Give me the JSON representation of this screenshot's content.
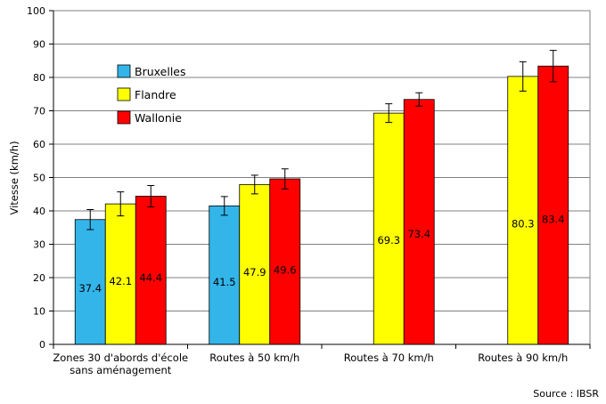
{
  "chart_data": {
    "type": "bar",
    "categories": [
      [
        "Zones 30 d'abords d'école",
        "sans aménagement"
      ],
      [
        "Routes à 50 km/h"
      ],
      [
        "Routes à 70 km/h"
      ],
      [
        "Routes à 90 km/h"
      ]
    ],
    "series": [
      {
        "name": "Bruxelles",
        "color": "#33b5ea",
        "values": [
          37.4,
          41.5,
          null,
          null
        ],
        "labels": [
          "37.4",
          "41.5",
          null,
          null
        ],
        "errors": [
          3.0,
          2.8,
          null,
          null
        ]
      },
      {
        "name": "Flandre",
        "color": "#ffff00",
        "values": [
          42.1,
          47.9,
          69.3,
          80.3
        ],
        "labels": [
          "42.1",
          "47.9",
          "69.3",
          "80.3"
        ],
        "errors": [
          3.6,
          2.8,
          2.8,
          4.4
        ]
      },
      {
        "name": "Wallonie",
        "color": "#ff0000",
        "values": [
          44.4,
          49.6,
          73.4,
          83.4
        ],
        "labels": [
          "44.4",
          "49.6",
          "73.4",
          "83.4"
        ],
        "errors": [
          3.2,
          3.0,
          2.0,
          4.7
        ]
      }
    ],
    "ylabel": "Vitesse (km/h)",
    "ylim": [
      0,
      100
    ],
    "yticks": [
      "0",
      "10",
      "20",
      "30",
      "40",
      "50",
      "60",
      "70",
      "80",
      "90",
      "100"
    ],
    "grid": true,
    "legend": "top-left",
    "source": "Source : IBSR"
  }
}
